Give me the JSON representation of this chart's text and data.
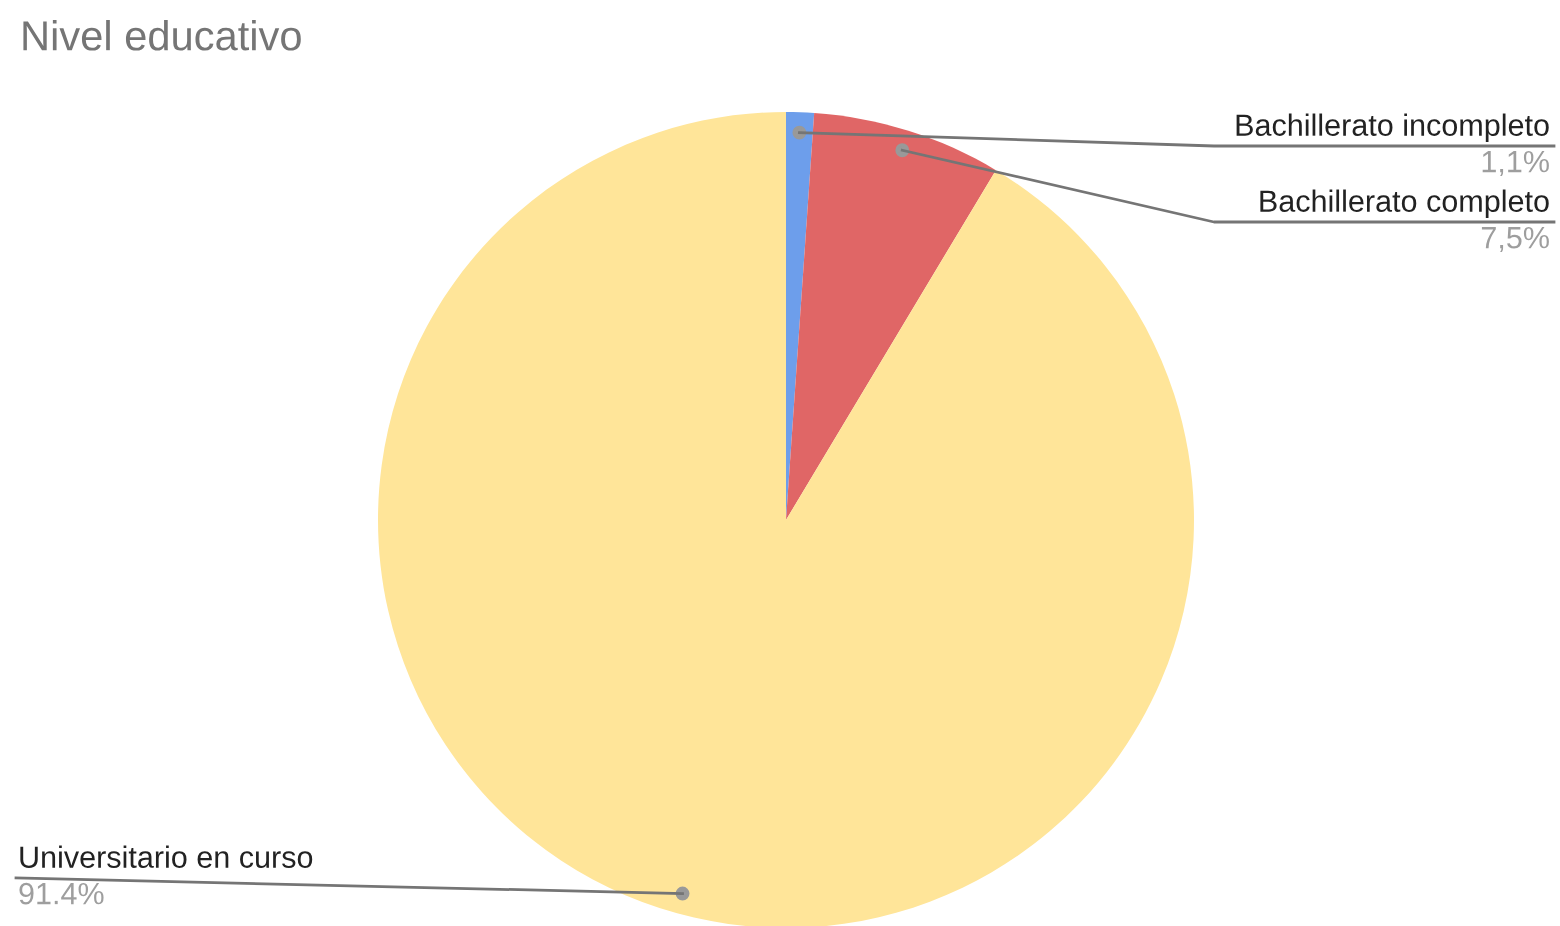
{
  "chart_data": {
    "type": "pie",
    "title": "Nivel educativo",
    "categories": [
      "Bachillerato incompleto",
      "Bachillerato completo",
      "Universitario en curso"
    ],
    "values": [
      1.1,
      7.5,
      91.4
    ],
    "value_labels": [
      "1,1%",
      "7,5%",
      "91.4%"
    ],
    "colors": [
      "#6d9eeb",
      "#e06666",
      "#ffe599"
    ],
    "legend": false
  }
}
